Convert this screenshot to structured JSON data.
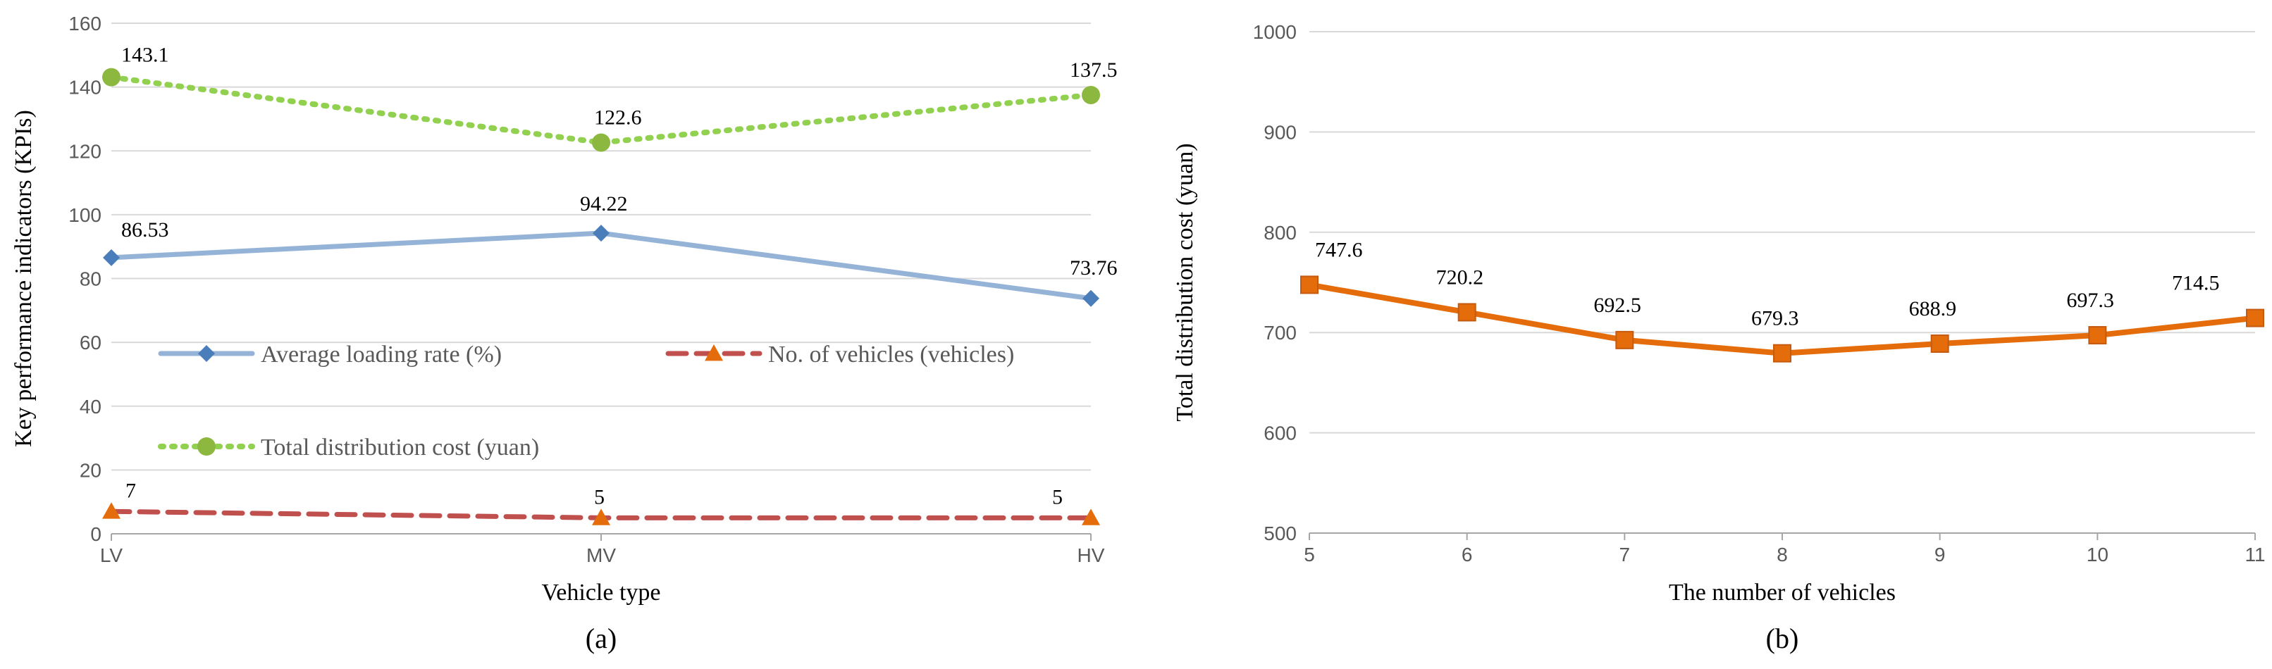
{
  "chart_data": [
    {
      "type": "line",
      "panel_label": "(a)",
      "categories": [
        "LV",
        "MV",
        "HV"
      ],
      "xlabel": "Vehicle type",
      "ylabel": "Key performance indicators (KPIs)",
      "ylim": [
        0,
        160
      ],
      "yticks": [
        0,
        20,
        40,
        60,
        80,
        100,
        120,
        140,
        160
      ],
      "grid": "horizontal",
      "legend_placement": "inside lower-left",
      "series": [
        {
          "name": "Average loading rate (%)",
          "values": [
            86.53,
            94.22,
            73.76
          ],
          "labels": [
            "86.53",
            "94.22",
            "73.76"
          ],
          "color": "#95b3d7",
          "marker_color": "#4a7ebb",
          "marker": "diamond",
          "style": "solid"
        },
        {
          "name": "No. of vehicles (vehicles)",
          "values": [
            7,
            5,
            5
          ],
          "labels": [
            "7",
            "5",
            "5"
          ],
          "color": "#c0504d",
          "marker_color": "#e46c0a",
          "marker": "triangle",
          "style": "dashed"
        },
        {
          "name": "Total distribution cost (yuan)",
          "values": [
            143.1,
            122.6,
            137.5
          ],
          "labels": [
            "143.1",
            "122.6",
            "137.5"
          ],
          "color": "#92d050",
          "marker_color": "#8db83f",
          "marker": "circle",
          "style": "dotted"
        }
      ]
    },
    {
      "type": "line",
      "panel_label": "(b)",
      "x": [
        5,
        6,
        7,
        8,
        9,
        10,
        11
      ],
      "xlabel": "The number of vehicles",
      "ylabel": "Total distribution cost (yuan)",
      "ylim": [
        500,
        1000
      ],
      "yticks": [
        500,
        600,
        700,
        800,
        900,
        1000
      ],
      "grid": "horizontal",
      "series": [
        {
          "values": [
            747.6,
            720.2,
            692.5,
            679.3,
            688.9,
            697.3,
            714.5
          ],
          "labels": [
            "747.6",
            "720.2",
            "692.5",
            "679.3",
            "688.9",
            "697.3",
            "714.5"
          ],
          "color": "#e46c0a",
          "marker": "square"
        }
      ]
    }
  ]
}
